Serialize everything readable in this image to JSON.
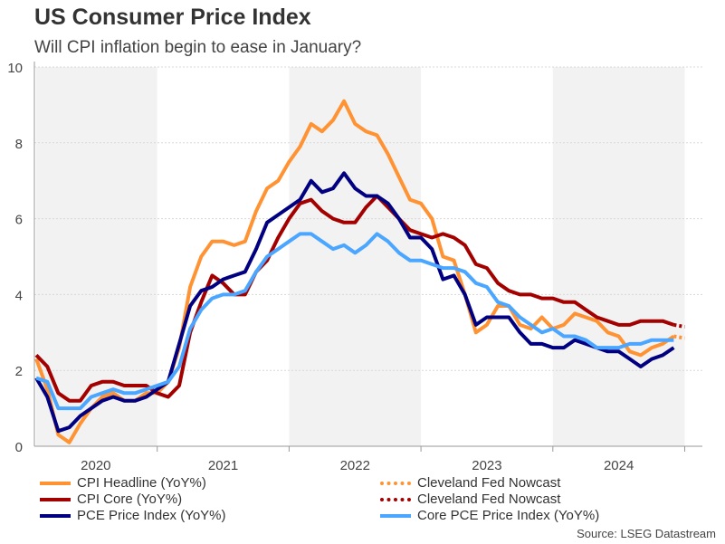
{
  "title": "US Consumer Price Index",
  "subtitle": "Will CPI inflation begin to ease in January?",
  "source": "Source: LSEG Datastream",
  "chart_data": {
    "type": "line",
    "x_start": "2020-02",
    "x_frequency": "monthly",
    "x_tick_labels": [
      "2020",
      "2021",
      "2022",
      "2023",
      "2024"
    ],
    "ylim": [
      0,
      10
    ],
    "y_ticks": [
      "0",
      "2",
      "4",
      "6",
      "8",
      "10"
    ],
    "grid": "horizontal dotted",
    "shaded_years": [
      "2020",
      "2022",
      "2024"
    ],
    "legend_position": "bottom",
    "series": [
      {
        "name": "CPI Headline (YoY%)",
        "color": "#ff9333",
        "style": "solid",
        "values": [
          2.3,
          1.5,
          0.3,
          0.1,
          0.6,
          1.0,
          1.3,
          1.4,
          1.2,
          1.2,
          1.4,
          1.4,
          1.7,
          2.6,
          4.2,
          5.0,
          5.4,
          5.4,
          5.3,
          5.4,
          6.2,
          6.8,
          7.0,
          7.5,
          7.9,
          8.5,
          8.3,
          8.6,
          9.1,
          8.5,
          8.3,
          8.2,
          7.7,
          7.1,
          6.5,
          6.4,
          6.0,
          5.0,
          4.9,
          4.0,
          3.0,
          3.2,
          3.7,
          3.7,
          3.2,
          3.1,
          3.4,
          3.1,
          3.2,
          3.5,
          3.4,
          3.3,
          3.0,
          2.9,
          2.5,
          2.4,
          2.6,
          2.7,
          2.9
        ]
      },
      {
        "name": "CPI Core (YoY%)",
        "color": "#a30000",
        "style": "solid",
        "values": [
          2.4,
          2.1,
          1.4,
          1.2,
          1.2,
          1.6,
          1.7,
          1.7,
          1.6,
          1.6,
          1.6,
          1.4,
          1.3,
          1.6,
          3.0,
          3.8,
          4.5,
          4.3,
          4.0,
          4.0,
          4.6,
          4.9,
          5.5,
          6.0,
          6.4,
          6.5,
          6.2,
          6.0,
          5.9,
          5.9,
          6.3,
          6.6,
          6.3,
          6.0,
          5.7,
          5.6,
          5.5,
          5.6,
          5.5,
          5.3,
          4.8,
          4.7,
          4.3,
          4.1,
          4.0,
          4.0,
          3.9,
          3.9,
          3.8,
          3.8,
          3.6,
          3.4,
          3.3,
          3.2,
          3.2,
          3.3,
          3.3,
          3.3,
          3.2
        ]
      },
      {
        "name": "PCE Price Index (YoY%)",
        "color": "#000080",
        "style": "solid",
        "values": [
          1.8,
          1.3,
          0.4,
          0.5,
          0.8,
          1.0,
          1.2,
          1.3,
          1.2,
          1.2,
          1.3,
          1.5,
          1.7,
          2.7,
          3.7,
          4.1,
          4.2,
          4.4,
          4.5,
          4.6,
          5.2,
          5.9,
          6.1,
          6.3,
          6.5,
          7.0,
          6.7,
          6.8,
          7.2,
          6.8,
          6.6,
          6.6,
          6.4,
          6.0,
          5.5,
          5.5,
          5.2,
          4.4,
          4.5,
          4.0,
          3.2,
          3.4,
          3.4,
          3.4,
          3.0,
          2.7,
          2.7,
          2.6,
          2.6,
          2.8,
          2.7,
          2.6,
          2.5,
          2.5,
          2.3,
          2.1,
          2.3,
          2.4,
          2.6
        ]
      },
      {
        "name": "Core PCE Price Index (YoY%)",
        "color": "#4aa6ff",
        "style": "solid",
        "values": [
          1.8,
          1.7,
          1.0,
          1.0,
          1.0,
          1.3,
          1.4,
          1.5,
          1.4,
          1.4,
          1.5,
          1.6,
          1.7,
          2.1,
          3.1,
          3.6,
          3.9,
          4.0,
          4.0,
          4.1,
          4.6,
          5.0,
          5.2,
          5.4,
          5.6,
          5.6,
          5.4,
          5.2,
          5.3,
          5.1,
          5.3,
          5.6,
          5.4,
          5.1,
          4.9,
          4.9,
          4.8,
          4.7,
          4.7,
          4.6,
          4.3,
          4.2,
          3.8,
          3.7,
          3.4,
          3.2,
          3.0,
          3.1,
          2.9,
          2.9,
          2.8,
          2.6,
          2.6,
          2.6,
          2.7,
          2.7,
          2.8,
          2.8,
          2.8
        ]
      },
      {
        "name": "Cleveland Fed Nowcast",
        "color": "#ff9333",
        "style": "dotted",
        "x_start": "2024-12",
        "values": [
          2.9,
          2.85
        ]
      },
      {
        "name": "Cleveland Fed Nowcast",
        "color": "#a30000",
        "style": "dotted",
        "x_start": "2024-12",
        "values": [
          3.2,
          3.15
        ]
      }
    ]
  }
}
